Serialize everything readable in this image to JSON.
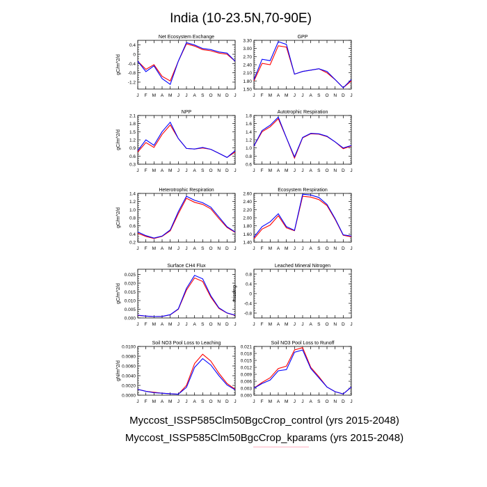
{
  "figure": {
    "title": "India (10-23.5N,70-90E)",
    "months": [
      "J",
      "F",
      "M",
      "A",
      "M",
      "J",
      "J",
      "A",
      "S",
      "O",
      "N",
      "D",
      "J"
    ],
    "colors": {
      "control": "#ff0000",
      "kparams": "#0000ff"
    },
    "legend": [
      "Myccost_ISSP585Clm50BgcCrop_control (yrs 2015-2048)",
      "Myccost_ISSP585Clm50BgcCrop_kparams (yrs 2015-2048)"
    ]
  },
  "chart_data": [
    {
      "type": "line",
      "title": "Net Ecosystem Exchange",
      "ylabel": "gC/m^2/d",
      "ylim": [
        -1.5,
        0.6
      ],
      "yticks": [
        0.4,
        0.0,
        -0.4,
        -0.8,
        -1.2
      ],
      "yticklabels": [
        "0.4",
        "0",
        "-0.4",
        "-0.8",
        "-1.2"
      ],
      "series": [
        {
          "values": [
            -0.3,
            -0.65,
            -0.45,
            -0.95,
            -1.15,
            -0.3,
            0.45,
            0.35,
            0.2,
            0.15,
            0.05,
            0.0,
            -0.3
          ]
        },
        {
          "values": [
            -0.3,
            -0.75,
            -0.5,
            -1.05,
            -1.3,
            -0.3,
            0.5,
            0.4,
            0.25,
            0.2,
            0.1,
            0.05,
            -0.3
          ]
        }
      ]
    },
    {
      "type": "line",
      "title": "GPP",
      "ylabel": "",
      "ylim": [
        1.5,
        3.3
      ],
      "yticks": [
        1.5,
        1.8,
        2.1,
        2.4,
        2.7,
        3.0,
        3.3
      ],
      "yticklabels": [
        "1.50",
        "1.80",
        "2.10",
        "2.40",
        "2.70",
        "3.00",
        "3.30"
      ],
      "series": [
        {
          "values": [
            1.8,
            2.45,
            2.4,
            3.1,
            3.05,
            2.05,
            2.15,
            2.2,
            2.25,
            2.1,
            1.85,
            1.55,
            1.8
          ]
        },
        {
          "values": [
            1.85,
            2.6,
            2.55,
            3.25,
            3.15,
            2.05,
            2.15,
            2.2,
            2.25,
            2.15,
            1.85,
            1.55,
            1.85
          ]
        }
      ]
    },
    {
      "type": "line",
      "title": "NPP",
      "ylabel": "gC/m^2/d",
      "ylim": [
        0.3,
        2.1
      ],
      "yticks": [
        0.3,
        0.6,
        0.9,
        1.2,
        1.5,
        1.8,
        2.1
      ],
      "yticklabels": [
        "0.3",
        "0.6",
        "0.9",
        "1.2",
        "1.5",
        "1.8",
        "2.1"
      ],
      "series": [
        {
          "values": [
            0.75,
            1.1,
            0.92,
            1.4,
            1.75,
            1.25,
            0.88,
            0.86,
            0.9,
            0.85,
            0.7,
            0.55,
            0.75
          ]
        },
        {
          "values": [
            0.8,
            1.2,
            1.0,
            1.5,
            1.85,
            1.25,
            0.88,
            0.86,
            0.92,
            0.85,
            0.7,
            0.55,
            0.8
          ]
        }
      ]
    },
    {
      "type": "line",
      "title": "Autotrophic Respiration",
      "ylabel": "",
      "ylim": [
        0.6,
        1.8
      ],
      "yticks": [
        0.6,
        0.8,
        1.0,
        1.2,
        1.4,
        1.6,
        1.8
      ],
      "yticklabels": [
        "0.6",
        "0.8",
        "1.0",
        "1.2",
        "1.4",
        "1.6",
        "1.8"
      ],
      "series": [
        {
          "values": [
            1.05,
            1.4,
            1.52,
            1.72,
            1.25,
            0.75,
            1.25,
            1.35,
            1.34,
            1.28,
            1.15,
            0.98,
            1.05
          ]
        },
        {
          "values": [
            1.05,
            1.43,
            1.56,
            1.76,
            1.25,
            0.78,
            1.26,
            1.36,
            1.35,
            1.29,
            1.15,
            1.0,
            1.06
          ]
        }
      ]
    },
    {
      "type": "line",
      "title": "Heterotrophic Respiration",
      "ylabel": "gC/m^2/d",
      "ylim": [
        0.2,
        1.4
      ],
      "yticks": [
        0.2,
        0.4,
        0.6,
        0.8,
        1.0,
        1.2,
        1.4
      ],
      "yticklabels": [
        "0.2",
        "0.4",
        "0.6",
        "0.8",
        "1.0",
        "1.2",
        "1.4"
      ],
      "series": [
        {
          "values": [
            0.42,
            0.34,
            0.29,
            0.34,
            0.48,
            0.9,
            1.28,
            1.18,
            1.13,
            1.02,
            0.78,
            0.56,
            0.44
          ]
        },
        {
          "values": [
            0.45,
            0.36,
            0.3,
            0.35,
            0.5,
            0.95,
            1.33,
            1.23,
            1.17,
            1.06,
            0.82,
            0.58,
            0.45
          ]
        }
      ]
    },
    {
      "type": "line",
      "title": "Ecosystem Respiration",
      "ylabel": "",
      "ylim": [
        1.4,
        2.6
      ],
      "yticks": [
        1.4,
        1.6,
        1.8,
        2.0,
        2.2,
        2.4,
        2.6
      ],
      "yticklabels": [
        "1.40",
        "1.60",
        "1.80",
        "2.00",
        "2.20",
        "2.40",
        "2.60"
      ],
      "series": [
        {
          "values": [
            1.48,
            1.72,
            1.82,
            2.05,
            1.75,
            1.68,
            2.53,
            2.51,
            2.45,
            2.3,
            1.96,
            1.57,
            1.53
          ]
        },
        {
          "values": [
            1.52,
            1.78,
            1.9,
            2.1,
            1.78,
            1.69,
            2.58,
            2.56,
            2.5,
            2.33,
            1.98,
            1.58,
            1.55
          ]
        }
      ]
    },
    {
      "type": "line",
      "title": "Surface CH4 Flux",
      "ylabel": "gC/m^2/d",
      "ylim": [
        0.0,
        0.028
      ],
      "yticks": [
        0.0,
        0.005,
        0.01,
        0.015,
        0.02,
        0.025
      ],
      "yticklabels": [
        "0.000",
        "0.005",
        "0.010",
        "0.015",
        "0.020",
        "0.025"
      ],
      "series": [
        {
          "values": [
            0.0015,
            0.0011,
            0.0008,
            0.0009,
            0.0018,
            0.005,
            0.016,
            0.023,
            0.021,
            0.012,
            0.0055,
            0.0028,
            0.0015
          ]
        },
        {
          "values": [
            0.0016,
            0.0011,
            0.0008,
            0.0009,
            0.0019,
            0.0052,
            0.017,
            0.0245,
            0.0225,
            0.0128,
            0.0058,
            0.0029,
            0.0016
          ]
        }
      ]
    },
    {
      "type": "line",
      "title": "Leached Mineral Nitrogen",
      "ylabel": "missing",
      "ylim": [
        -1.0,
        1.0
      ],
      "yticks": [
        0.8,
        0.4,
        0.0,
        -0.4,
        -0.8
      ],
      "yticklabels": [
        "0.8",
        "0.4",
        "0",
        "-0.4",
        "-0.8"
      ],
      "series": []
    },
    {
      "type": "line",
      "title": "Soil NO3 Pool Loss to Leaching",
      "ylabel": "gN/m^2/d",
      "ylim": [
        0.0,
        0.01
      ],
      "yticks": [
        0.0,
        0.002,
        0.004,
        0.006,
        0.008,
        0.01
      ],
      "yticklabels": [
        "0.0000",
        "0.0020",
        "0.0040",
        "0.0060",
        "0.0080",
        "0.0100"
      ],
      "series": [
        {
          "values": [
            0.0012,
            0.0008,
            0.0006,
            0.0004,
            0.0003,
            0.0002,
            0.002,
            0.0065,
            0.0084,
            0.007,
            0.0045,
            0.0024,
            0.0012
          ]
        },
        {
          "values": [
            0.0012,
            0.0008,
            0.0005,
            0.0004,
            0.0003,
            0.0002,
            0.0016,
            0.0057,
            0.0075,
            0.0062,
            0.004,
            0.0021,
            0.0011
          ]
        }
      ]
    },
    {
      "type": "line",
      "title": "Soil NO3 Pool Loss to Runoff",
      "ylabel": "",
      "ylim": [
        0.0,
        0.021
      ],
      "yticks": [
        0.0,
        0.003,
        0.006,
        0.009,
        0.012,
        0.015,
        0.018,
        0.021
      ],
      "yticklabels": [
        "0.000",
        "0.003",
        "0.006",
        "0.009",
        "0.012",
        "0.015",
        "0.018",
        "0.021"
      ],
      "series": [
        {
          "values": [
            0.003,
            0.0055,
            0.0075,
            0.0115,
            0.0125,
            0.0195,
            0.0205,
            0.012,
            0.008,
            0.0035,
            0.0015,
            0.0005,
            0.0035
          ]
        },
        {
          "values": [
            0.003,
            0.005,
            0.0065,
            0.0105,
            0.011,
            0.0185,
            0.0195,
            0.0115,
            0.0075,
            0.0035,
            0.0015,
            0.0005,
            0.0035
          ]
        }
      ]
    }
  ]
}
